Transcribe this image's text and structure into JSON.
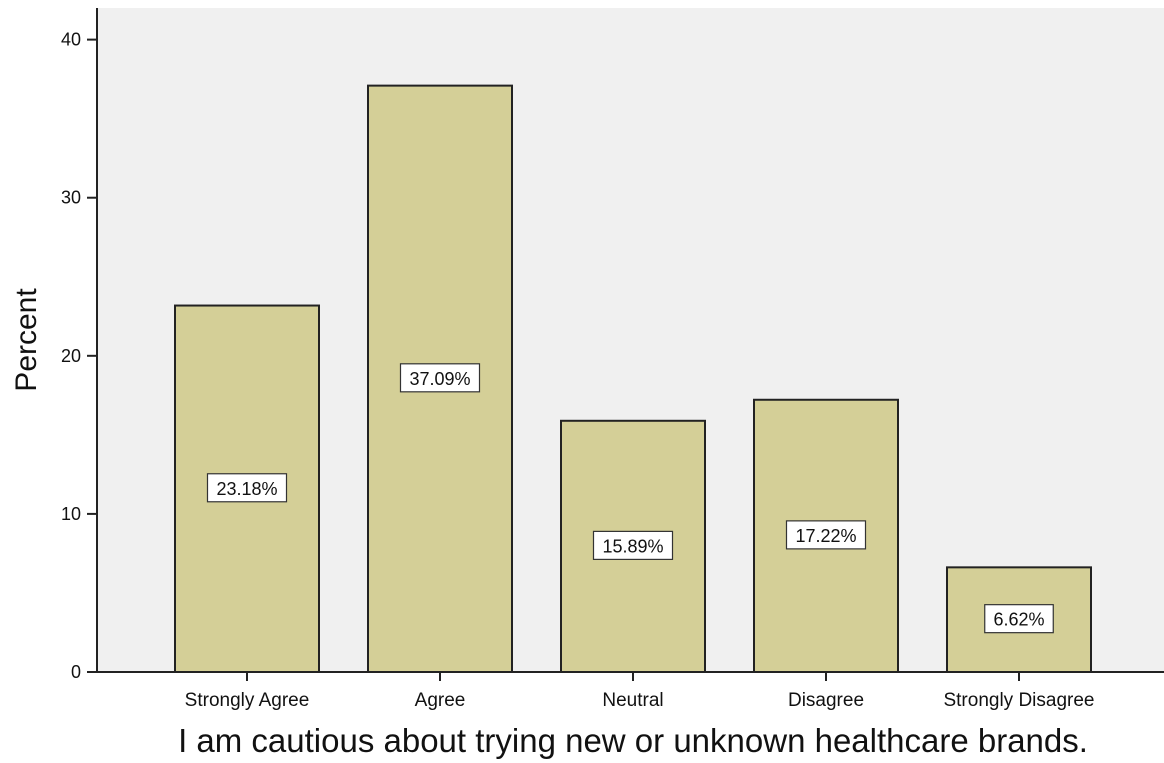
{
  "chart_data": {
    "type": "bar",
    "categories": [
      "Strongly Agree",
      "Agree",
      "Neutral",
      "Disagree",
      "Strongly Disagree"
    ],
    "values": [
      23.18,
      37.09,
      15.89,
      17.22,
      6.62
    ],
    "data_labels": [
      "23.18%",
      "37.09%",
      "15.89%",
      "17.22%",
      "6.62%"
    ],
    "xlabel": "I am cautious about trying new or unknown healthcare brands.",
    "ylabel": "Percent",
    "ylim": [
      0,
      42
    ],
    "yticks": [
      0,
      10,
      20,
      30,
      40
    ],
    "grid": false,
    "colors": {
      "bar_fill": "#d4cf97",
      "bar_stroke": "#222222",
      "plot_background": "#f0f0f0",
      "label_box": "#ffffff"
    }
  }
}
